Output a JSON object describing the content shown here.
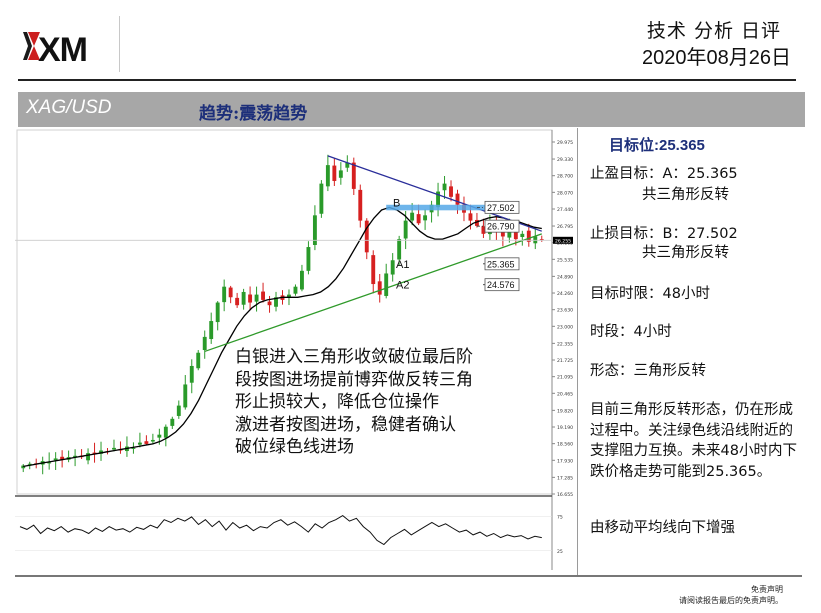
{
  "header": {
    "logo_text": "XM",
    "report_title": "技术 分析 日评",
    "date": "2020年08月26日"
  },
  "band": {
    "pair": "XAG/USD",
    "trend": "趋势:震荡趋势"
  },
  "chart_data": {
    "type": "candlestick",
    "symbol": "XAG/USD",
    "price_axis": {
      "ticks": [
        "29.975",
        "29.330",
        "28.700",
        "28.070",
        "27.440",
        "26.795",
        "26.165",
        "25.535",
        "24.890",
        "24.260",
        "23.630",
        "23.000",
        "22.355",
        "21.725",
        "21.095",
        "20.465",
        "19.820",
        "19.190",
        "18.560",
        "17.930",
        "17.285",
        "16.655"
      ],
      "ylim": [
        16.655,
        29.975
      ],
      "current_price": "26.255"
    },
    "close_series_approx": [
      17.73,
      17.8,
      17.78,
      17.9,
      17.85,
      18.0,
      17.95,
      18.05,
      18.1,
      18.05,
      18.2,
      18.15,
      18.3,
      18.25,
      18.4,
      18.3,
      18.45,
      18.4,
      18.6,
      18.55,
      18.7,
      18.9,
      19.2,
      19.5,
      20.0,
      20.8,
      21.5,
      22.0,
      22.6,
      23.2,
      23.9,
      24.5,
      24.1,
      23.8,
      24.3,
      23.9,
      24.2,
      24.0,
      23.8,
      24.1,
      24.0,
      24.2,
      24.5,
      25.1,
      26.0,
      27.2,
      28.4,
      29.1,
      28.5,
      28.9,
      29.2,
      28.2,
      27.0,
      25.8,
      24.6,
      24.2,
      25.0,
      25.5,
      26.3,
      27.0,
      27.3,
      26.9,
      27.2,
      27.6,
      28.1,
      28.4,
      27.9,
      27.6,
      27.3,
      27.0,
      26.8,
      26.5,
      26.9,
      26.6,
      26.4,
      26.7,
      26.3,
      26.5,
      26.2,
      26.4,
      26.255
    ],
    "moving_average_approx": [
      17.7,
      17.75,
      17.8,
      17.85,
      17.9,
      17.95,
      18.0,
      18.05,
      18.1,
      18.15,
      18.2,
      18.25,
      18.3,
      18.35,
      18.4,
      18.45,
      18.5,
      18.55,
      18.65,
      18.8,
      19.0,
      19.3,
      19.7,
      20.2,
      20.8,
      21.4,
      22.0,
      22.5,
      23.0,
      23.4,
      23.7,
      23.9,
      24.0,
      24.05,
      24.1,
      24.1,
      24.1,
      24.15,
      24.2,
      24.3,
      24.5,
      24.8,
      25.2,
      25.7,
      26.2,
      26.7,
      27.1,
      27.4,
      27.5,
      27.4,
      27.2,
      26.9,
      26.6,
      26.4,
      26.3,
      26.3,
      26.4,
      26.5,
      26.7,
      26.9,
      27.0,
      27.1,
      27.15,
      27.1,
      27.0,
      26.95,
      26.85,
      26.75,
      26.7
    ],
    "lines": {
      "resistance": {
        "label": "",
        "color": "#2a2e9a",
        "from": [
          47,
          29.45
        ],
        "to": [
          80,
          26.6
        ]
      },
      "support": {
        "label": "",
        "color": "#2f9a2a",
        "from": [
          28,
          22.05
        ],
        "to": [
          80,
          26.5
        ]
      }
    },
    "zone_band": {
      "low": 27.39,
      "high": 27.6,
      "color": "#55a8e8"
    },
    "levels": [
      {
        "label": "B",
        "value": 27.502,
        "tag": "27.502"
      },
      {
        "label": "",
        "value": 26.79,
        "tag": "26.790"
      },
      {
        "label": "A1",
        "value": 25.365,
        "tag": "25.365"
      },
      {
        "label": "A2",
        "value": 24.576,
        "tag": "24.576"
      }
    ],
    "oscillator": {
      "ticks": [
        "75",
        "25"
      ],
      "ylim": [
        0,
        100
      ],
      "values": [
        60,
        56,
        62,
        50,
        58,
        54,
        60,
        52,
        57,
        55,
        50,
        58,
        53,
        60,
        55,
        57,
        52,
        59,
        56,
        62,
        58,
        70,
        66,
        72,
        68,
        74,
        63,
        70,
        60,
        68,
        55,
        66,
        58,
        62,
        54,
        60,
        58,
        66,
        70,
        62,
        67,
        60,
        52,
        64,
        58,
        66,
        70,
        76,
        68,
        72,
        60,
        52,
        40,
        34,
        44,
        50,
        56,
        48,
        54,
        60,
        66,
        60,
        64,
        58,
        52,
        55,
        48,
        52,
        46,
        50,
        44,
        48,
        45,
        47,
        42,
        46,
        44
      ]
    }
  },
  "annotation": {
    "lines": [
      "白银进入三角形收敛破位最后阶",
      "段按图进场提前博弈做反转三角",
      "形止损较大，降低仓位操作",
      "激进者按图进场，稳健者确认",
      "破位绿色线进场"
    ]
  },
  "panel": {
    "target_head": "目标位:25.365",
    "tp_line": "止盈目标：A：25.365",
    "tp_sub": "共三角形反转",
    "sl_line": "止损目标：B：27.502",
    "sl_sub": "共三角形反转",
    "time_limit": "目标时限：48小时",
    "period": "时段：4小时",
    "pattern": "形态：三角形反转",
    "summary": "目前三角形反转形态，仍在形成过程中。关注绿色线沿线附近的支撑阻力互换。未来48小时内下跌价格走势可能到25.365。",
    "ma_note": "由移动平均线向下增强"
  },
  "footer": {
    "disclaimer_title": "免责声明",
    "disclaimer_text": "请阅读报告最后的免责声明。"
  },
  "colors": {
    "band": "#a7a7a7",
    "trend_text": "#1d2f7a",
    "candle_up": "#2a9a2a",
    "candle_down": "#d62020",
    "ma": "#000000",
    "logo_red": "#cc1f1f"
  }
}
